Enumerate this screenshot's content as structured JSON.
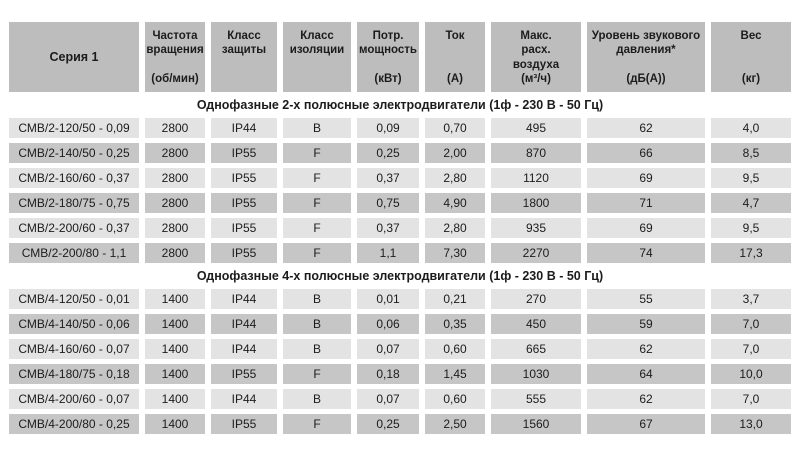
{
  "colors": {
    "header_bg": "#bdbdbd",
    "row_light_bg": "#e3e3e3",
    "row_dark_bg": "#c6c6c6",
    "text": "#1c1c1c",
    "background": "#ffffff"
  },
  "table": {
    "headers": [
      {
        "id": "series",
        "label": "Серия 1",
        "unit": "",
        "center": true
      },
      {
        "id": "speed",
        "label": "Частота\nвращения",
        "unit": "(об/мин)",
        "center": false
      },
      {
        "id": "protection-class",
        "label": "Класс\nзащиты",
        "unit": "",
        "center": false
      },
      {
        "id": "insulation-class",
        "label": "Класс\nизоляции",
        "unit": "",
        "center": false
      },
      {
        "id": "power",
        "label": "Потр.\nмощность",
        "unit": "(кВт)",
        "center": false
      },
      {
        "id": "current",
        "label": "Ток",
        "unit": "(А)",
        "center": false
      },
      {
        "id": "airflow",
        "label": "Макс.\nрасх.\nвоздуха",
        "unit": "(м³/ч)",
        "center": false
      },
      {
        "id": "sound-level",
        "label": "Уровень звукового\nдавления*",
        "unit": "(дБ(А))",
        "center": false
      },
      {
        "id": "weight",
        "label": "Вес",
        "unit": "(кг)",
        "center": false
      }
    ],
    "sections": [
      {
        "title": "Однофазные 2-х полюсные электродвигатели (1ф - 230 В - 50 Гц)",
        "rows": [
          [
            "СМВ/2-120/50 - 0,09",
            "2800",
            "IP44",
            "B",
            "0,09",
            "0,70",
            "495",
            "62",
            "4,0"
          ],
          [
            "СМВ/2-140/50 - 0,25",
            "2800",
            "IP55",
            "F",
            "0,25",
            "2,00",
            "870",
            "66",
            "8,5"
          ],
          [
            "СМВ/2-160/60 - 0,37",
            "2800",
            "IP55",
            "F",
            "0,37",
            "2,80",
            "1120",
            "69",
            "9,5"
          ],
          [
            "СМВ/2-180/75 - 0,75",
            "2800",
            "IP55",
            "F",
            "0,75",
            "4,90",
            "1800",
            "71",
            "4,7"
          ],
          [
            "СМВ/2-200/60 - 0,37",
            "2800",
            "IP55",
            "F",
            "0,37",
            "2,80",
            "935",
            "69",
            "9,5"
          ],
          [
            "СМВ/2-200/80 - 1,1",
            "2800",
            "IP55",
            "F",
            "1,1",
            "7,30",
            "2270",
            "74",
            "17,3"
          ]
        ]
      },
      {
        "title": "Однофазные 4-х полюсные электродвигатели (1ф - 230 В - 50 Гц)",
        "rows": [
          [
            "СМВ/4-120/50 - 0,01",
            "1400",
            "IP44",
            "B",
            "0,01",
            "0,21",
            "270",
            "55",
            "3,7"
          ],
          [
            "СМВ/4-140/50 - 0,06",
            "1400",
            "IP44",
            "B",
            "0,06",
            "0,35",
            "450",
            "59",
            "7,0"
          ],
          [
            "СМВ/4-160/60 - 0,07",
            "1400",
            "IP44",
            "B",
            "0,07",
            "0,60",
            "665",
            "62",
            "7,0"
          ],
          [
            "СМВ/4-180/75 - 0,18",
            "1400",
            "IP55",
            "F",
            "0,18",
            "1,45",
            "1030",
            "64",
            "10,0"
          ],
          [
            "СМВ/4-200/60 - 0,07",
            "1400",
            "IP44",
            "B",
            "0,07",
            "0,60",
            "555",
            "62",
            "7,0"
          ],
          [
            "СМВ/4-200/80 - 0,25",
            "1400",
            "IP55",
            "F",
            "0,25",
            "2,50",
            "1560",
            "67",
            "13,0"
          ]
        ]
      }
    ]
  }
}
